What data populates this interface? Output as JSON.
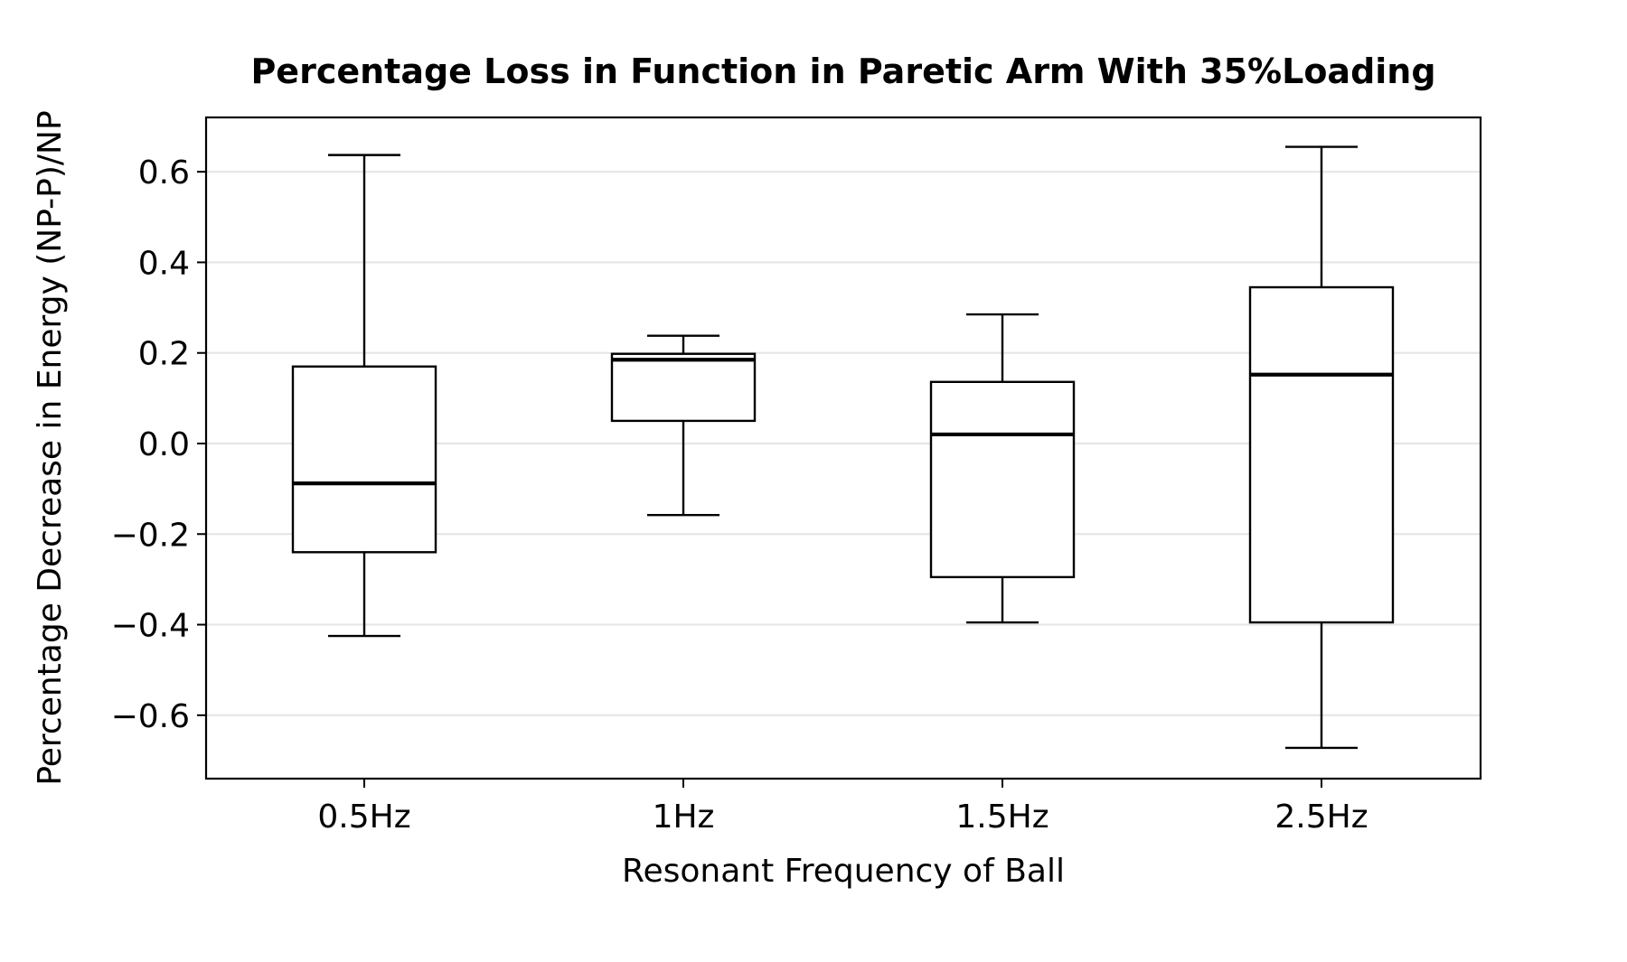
{
  "chart_data": {
    "type": "box",
    "title": "Percentage Loss in Function in Paretic Arm With 35%Loading",
    "xlabel": "Resonant Frequency of Ball",
    "ylabel": "Percentage Decrease in Energy (NP-P)/NP",
    "categories": [
      "0.5Hz",
      "1Hz",
      "1.5Hz",
      "2.5Hz"
    ],
    "boxes": [
      {
        "category": "0.5Hz",
        "whisker_low": -0.425,
        "q1": -0.24,
        "median": -0.088,
        "q3": 0.17,
        "whisker_high": 0.637
      },
      {
        "category": "1Hz",
        "whisker_low": -0.158,
        "q1": 0.05,
        "median": 0.185,
        "q3": 0.198,
        "whisker_high": 0.238
      },
      {
        "category": "1.5Hz",
        "whisker_low": -0.395,
        "q1": -0.295,
        "median": 0.02,
        "q3": 0.136,
        "whisker_high": 0.285
      },
      {
        "category": "2.5Hz",
        "whisker_low": -0.672,
        "q1": -0.395,
        "median": 0.152,
        "q3": 0.345,
        "whisker_high": 0.655
      }
    ],
    "ylim": [
      -0.74,
      0.72
    ],
    "yticks": [
      -0.6,
      -0.4,
      -0.2,
      0.0,
      0.2,
      0.4,
      0.6
    ],
    "ytick_labels": [
      "−0.6",
      "−0.4",
      "−0.2",
      "0.0",
      "0.2",
      "0.4",
      "0.6"
    ],
    "grid": "horizontal",
    "colors": {
      "grid": "#e6e6e6",
      "stroke": "#000000",
      "box_fill": "#ffffff"
    }
  }
}
